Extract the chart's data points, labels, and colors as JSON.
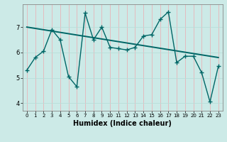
{
  "xlabel": "Humidex (Indice chaleur)",
  "bg_color": "#cceae7",
  "grid_color_v": "#e8b4b8",
  "grid_color_h": "#b8ddd9",
  "line_color": "#006666",
  "x_data": [
    0,
    1,
    2,
    3,
    4,
    5,
    6,
    7,
    8,
    9,
    10,
    11,
    12,
    13,
    14,
    15,
    16,
    17,
    18,
    19,
    20,
    21,
    22,
    23
  ],
  "y_data": [
    5.3,
    5.8,
    6.05,
    6.9,
    6.5,
    5.05,
    4.65,
    7.55,
    6.5,
    7.0,
    6.2,
    6.15,
    6.1,
    6.2,
    6.65,
    6.7,
    7.3,
    7.6,
    5.6,
    5.85,
    5.85,
    5.2,
    4.05,
    5.45
  ],
  "trend_x": [
    0,
    23
  ],
  "trend_y": [
    7.0,
    5.8
  ],
  "xlim": [
    -0.5,
    23.5
  ],
  "ylim": [
    3.7,
    7.9
  ],
  "yticks": [
    4,
    5,
    6,
    7
  ],
  "xticks": [
    0,
    1,
    2,
    3,
    4,
    5,
    6,
    7,
    8,
    9,
    10,
    11,
    12,
    13,
    14,
    15,
    16,
    17,
    18,
    19,
    20,
    21,
    22,
    23
  ]
}
